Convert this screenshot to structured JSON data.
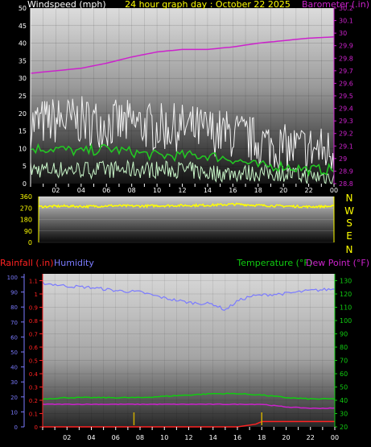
{
  "colors": {
    "wind": "#ffffff",
    "gust": "#f2f2f2",
    "avg": "#22cc22",
    "avg_light": "#c8f5c8",
    "barometer": "#cc22cc",
    "direction": "#ffff00",
    "humidity": "#7b7bff",
    "temperature": "#11cc11",
    "dewpoint": "#cc22cc",
    "rain": "#ff2222",
    "rain_tick": "#ccaa00"
  },
  "header": {
    "left": "Windspeed (mph)",
    "center": "24 hour graph day : October 22 2025",
    "right": "Barometer (.in)"
  },
  "direction_labels": [
    "N",
    "W",
    "S",
    "E",
    "N"
  ],
  "bottom_header": {
    "rain": "Rainfall (.in)",
    "humidity": "Humidity",
    "temperature": "Temperature (°F)",
    "dewpoint": "Dew Point (°F)"
  },
  "chart_data": [
    {
      "type": "line",
      "title": "Windspeed (mph) / Barometer (.in)",
      "x_ticks": [
        "02",
        "04",
        "06",
        "08",
        "10",
        "12",
        "14",
        "16",
        "18",
        "20",
        "22",
        "00"
      ],
      "y_left": {
        "label": "Windspeed (mph)",
        "ylim": [
          0,
          50
        ],
        "ticks": [
          0,
          5,
          10,
          15,
          20,
          25,
          30,
          35,
          40,
          45,
          50
        ]
      },
      "y_right": {
        "label": "Barometer (.in)",
        "ylim": [
          28.8,
          30.2
        ],
        "ticks": [
          "28.8",
          "28.9",
          "29",
          "29.1",
          "29.2",
          "29.3",
          "29.4",
          "29.5",
          "29.6",
          "29.7",
          "29.8",
          "29.9",
          "30",
          "30.1",
          "30.2"
        ]
      },
      "series": [
        {
          "name": "Gust",
          "x": [
            0,
            2,
            4,
            6,
            8,
            10,
            12,
            14,
            16,
            18,
            20,
            22,
            24
          ],
          "values": [
            17,
            18,
            18,
            17,
            17,
            16,
            16,
            15,
            14,
            12,
            10,
            10,
            9
          ]
        },
        {
          "name": "Wind avg",
          "x": [
            0,
            2,
            4,
            6,
            8,
            10,
            12,
            14,
            16,
            18,
            20,
            22,
            24
          ],
          "values": [
            10,
            10,
            9,
            10,
            9,
            8,
            8,
            8,
            7,
            5,
            5,
            4,
            4
          ]
        },
        {
          "name": "Wind low",
          "x": [
            0,
            2,
            4,
            6,
            8,
            10,
            12,
            14,
            16,
            18,
            20,
            22,
            24
          ],
          "values": [
            3,
            3,
            3,
            3,
            3,
            3,
            3,
            2,
            2,
            2,
            2,
            1,
            1
          ]
        },
        {
          "name": "Barometer",
          "x": [
            0,
            2,
            4,
            6,
            8,
            10,
            12,
            14,
            16,
            18,
            20,
            22,
            24
          ],
          "values": [
            29.68,
            29.7,
            29.72,
            29.76,
            29.81,
            29.85,
            29.87,
            29.87,
            29.89,
            29.92,
            29.94,
            29.96,
            29.97
          ]
        }
      ]
    },
    {
      "type": "line",
      "title": "Wind direction",
      "x_ticks": [],
      "y_left": {
        "ylim": [
          0,
          360
        ],
        "ticks": [
          0,
          90,
          180,
          270,
          360
        ]
      },
      "series": [
        {
          "name": "Direction",
          "x": [
            0,
            2,
            4,
            6,
            8,
            10,
            12,
            14,
            16,
            18,
            20,
            22,
            24
          ],
          "values": [
            280,
            285,
            282,
            288,
            285,
            288,
            290,
            292,
            300,
            290,
            285,
            280,
            283
          ]
        }
      ]
    },
    {
      "type": "line",
      "title": "Rainfall / Humidity / Temperature / Dew Point",
      "x_ticks": [
        "02",
        "04",
        "06",
        "08",
        "10",
        "12",
        "14",
        "16",
        "18",
        "20",
        "22",
        "00"
      ],
      "y_rain": {
        "label": "Rainfall (.in)",
        "ticks": [
          "0",
          "0.1",
          "0.2",
          "0.3",
          "0.4",
          "0.5",
          "0.6",
          "0.7",
          "0.8",
          "0.9",
          "1",
          "1.1"
        ]
      },
      "y_humidity": {
        "label": "Humidity",
        "ticks": [
          0,
          10,
          20,
          30,
          40,
          50,
          60,
          70,
          80,
          90,
          100
        ]
      },
      "y_temp": {
        "label": "Temperature (°F)",
        "ticks": [
          20,
          30,
          40,
          50,
          60,
          70,
          80,
          90,
          100,
          110,
          120,
          130
        ]
      },
      "series": [
        {
          "name": "Humidity",
          "x": [
            0,
            2,
            4,
            6,
            8,
            10,
            12,
            14,
            15,
            16,
            17,
            18,
            20,
            22,
            24
          ],
          "values": [
            96,
            94,
            93,
            91,
            90,
            86,
            83,
            82,
            78,
            84,
            87,
            88,
            89,
            91,
            92
          ]
        },
        {
          "name": "Temperature",
          "x": [
            0,
            2,
            4,
            6,
            8,
            10,
            12,
            14,
            16,
            18,
            20,
            22,
            24
          ],
          "values": [
            41,
            42,
            42,
            42,
            42,
            43,
            44,
            45,
            45,
            44,
            42,
            41,
            41
          ]
        },
        {
          "name": "Dew Point",
          "x": [
            0,
            2,
            4,
            6,
            8,
            10,
            12,
            14,
            16,
            18,
            20,
            22,
            24
          ],
          "values": [
            37,
            37,
            37,
            37,
            37,
            37,
            37,
            37,
            37,
            37,
            35,
            34,
            34
          ]
        },
        {
          "name": "Rainfall",
          "x": [
            0,
            2,
            4,
            6,
            8,
            10,
            12,
            14,
            16,
            17.5,
            18,
            20,
            22,
            24
          ],
          "values": [
            0,
            0,
            0,
            0,
            0,
            0,
            0,
            0,
            0,
            0.02,
            0.04,
            0.04,
            0.04,
            0.04
          ]
        }
      ]
    }
  ]
}
